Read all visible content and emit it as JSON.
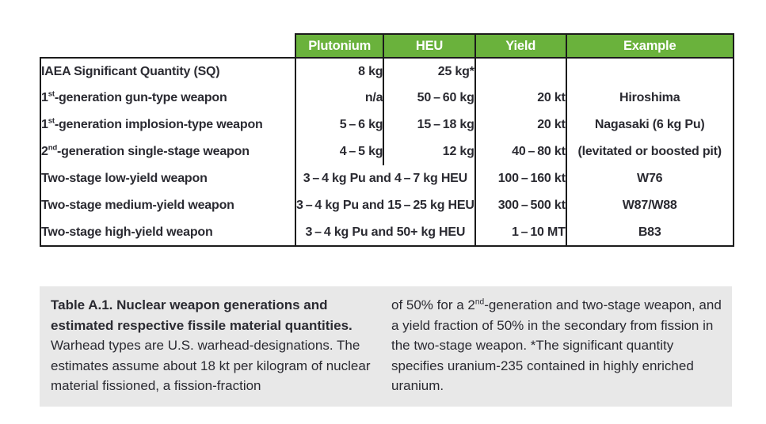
{
  "colors": {
    "header_green": "#6ab23c",
    "stripe_gray": "#e8e8e8",
    "border_dark": "#1b1b1b",
    "text_ink": "#2a2a31"
  },
  "table": {
    "columns": [
      "Plutonium",
      "HEU",
      "Yield",
      "Example"
    ],
    "rows": [
      {
        "label_parts": [
          {
            "text": "IAEA Significant Quantity (SQ)"
          }
        ],
        "pu": "8 kg",
        "heu": "25 kg*",
        "yield": "",
        "example": ""
      },
      {
        "label_parts": [
          {
            "text": "1"
          },
          {
            "text": "st",
            "style": "sup"
          },
          {
            "text": "-generation gun-type weapon"
          }
        ],
        "pu": "n/a",
        "heu": "50 – 60 kg",
        "yield": "20 kt",
        "example": "Hiroshima"
      },
      {
        "label_parts": [
          {
            "text": "1"
          },
          {
            "text": "st",
            "style": "sup"
          },
          {
            "text": "-generation implosion-type weapon"
          }
        ],
        "pu": "5 – 6 kg",
        "heu": "15 – 18 kg",
        "yield": "20 kt",
        "example": "Nagasaki (6 kg Pu)"
      },
      {
        "label_parts": [
          {
            "text": "2"
          },
          {
            "text": "nd",
            "style": "sup"
          },
          {
            "text": "-generation single-stage weapon"
          }
        ],
        "pu": "4 – 5 kg",
        "heu": "12 kg",
        "yield": "40 – 80 kt",
        "example": "(levitated or boosted pit)"
      },
      {
        "label_parts": [
          {
            "text": "Two-stage low-yield weapon"
          }
        ],
        "material": "3 – 4 kg Pu and 4 – 7 kg HEU",
        "yield": "100 – 160 kt",
        "example": "W76"
      },
      {
        "label_parts": [
          {
            "text": "Two-stage medium-yield weapon"
          }
        ],
        "material": "3 – 4 kg Pu and 15 – 25 kg HEU",
        "yield": "300 – 500 kt",
        "example": "W87/W88"
      },
      {
        "label_parts": [
          {
            "text": "Two-stage high-yield weapon"
          }
        ],
        "material": "3 – 4 kg Pu and 50+ kg HEU",
        "yield": "1 – 10 MT",
        "example": "B83"
      }
    ]
  },
  "caption": {
    "left_parts": [
      {
        "text": "Table A.1. Nuclear weapon generations and estimated respective fissile material quantities.",
        "style": "bold"
      },
      {
        "text": " Warhead types are U.S. warhead-designations. The estimates assume about 18 kt per kilogram of nuclear material fissioned, a fission-fraction"
      }
    ],
    "right_parts": [
      {
        "text": "of 50% for a 2"
      },
      {
        "text": "nd",
        "style": "sup"
      },
      {
        "text": "-generation and two-stage weapon, and a yield fraction of 50% in the secondary from fission in the two-stage weapon. *The significant quantity specifies uranium-235 contained in highly enriched uranium."
      }
    ]
  }
}
